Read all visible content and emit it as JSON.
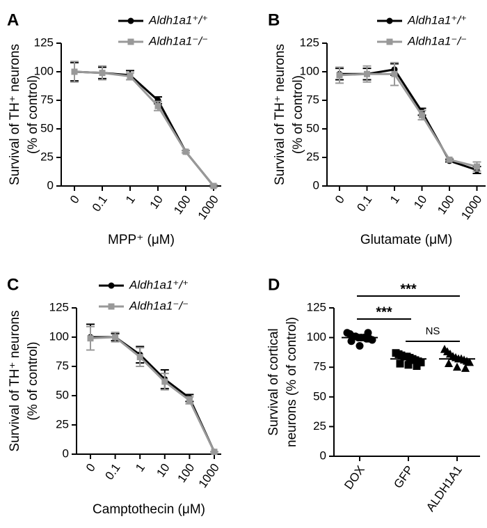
{
  "chart_data": [
    {
      "type": "line",
      "panel": "A",
      "ylabel": [
        "Survival of TH⁺ neurons",
        "(% of control)"
      ],
      "xlabel": "MPP⁺ (μM)",
      "categories": [
        "0",
        "0.1",
        "1",
        "10",
        "100",
        "1000"
      ],
      "ylim": [
        0,
        125
      ],
      "yticks": [
        0,
        25,
        50,
        75,
        100,
        125
      ],
      "legend": "top",
      "series": [
        {
          "name": "Aldh1a1⁺/⁺",
          "color": "#000000",
          "values": [
            100,
            99,
            97,
            75,
            30,
            0
          ],
          "errors": [
            8,
            5,
            4,
            3,
            1,
            0
          ]
        },
        {
          "name": "Aldh1a1⁻/⁻",
          "color": "#999999",
          "values": [
            100,
            99,
            96,
            70,
            30,
            0
          ],
          "errors": [
            9,
            6,
            3,
            4,
            1,
            1
          ]
        }
      ]
    },
    {
      "type": "line",
      "panel": "B",
      "ylabel": [
        "Survival of TH⁺ neurons",
        "(% of control)"
      ],
      "xlabel": "Glutamate (μM)",
      "categories": [
        "0",
        "0.1",
        "1",
        "10",
        "100",
        "1000"
      ],
      "ylim": [
        0,
        125
      ],
      "yticks": [
        0,
        25,
        50,
        75,
        100,
        125
      ],
      "legend": "top",
      "series": [
        {
          "name": "Aldh1a1⁺/⁺",
          "color": "#000000",
          "values": [
            98,
            98,
            102,
            65,
            22,
            14
          ],
          "errors": [
            5,
            5,
            5,
            3,
            1,
            3
          ]
        },
        {
          "name": "Aldh1a1⁻/⁻",
          "color": "#999999",
          "values": [
            97,
            98,
            98,
            62,
            23,
            17
          ],
          "errors": [
            7,
            7,
            10,
            4,
            1,
            4
          ]
        }
      ]
    },
    {
      "type": "line",
      "panel": "C",
      "ylabel": [
        "Survival of TH⁺ neurons",
        "(% of control)"
      ],
      "xlabel": "Camptothecin (μM)",
      "categories": [
        "0",
        "0.1",
        "1",
        "10",
        "100",
        "1000"
      ],
      "ylim": [
        0,
        125
      ],
      "yticks": [
        0,
        25,
        50,
        75,
        100,
        125
      ],
      "legend": "top",
      "series": [
        {
          "name": "Aldh1a1⁺/⁺",
          "color": "#000000",
          "values": [
            100,
            100,
            85,
            64,
            48,
            2
          ],
          "errors": [
            11,
            3,
            7,
            8,
            3,
            0
          ]
        },
        {
          "name": "Aldh1a1⁻/⁻",
          "color": "#999999",
          "values": [
            99,
            100,
            83,
            62,
            46,
            2
          ],
          "errors": [
            10,
            4,
            8,
            7,
            3,
            0
          ]
        }
      ]
    },
    {
      "type": "dot",
      "panel": "D",
      "ylabel": [
        "Survival of cortical",
        "neurons (% of control)"
      ],
      "categories": [
        "DOX",
        "GFP",
        "ALDH1A1"
      ],
      "markers": [
        "circle",
        "square",
        "triangle"
      ],
      "color": "#000000",
      "ylim": [
        0,
        125
      ],
      "yticks": [
        0,
        25,
        50,
        75,
        100,
        125
      ],
      "points": [
        [
          104,
          103,
          101,
          101,
          100,
          100,
          100,
          99,
          99,
          98,
          97,
          93,
          104
        ],
        [
          87,
          86,
          85,
          84,
          84,
          83,
          82,
          81,
          80,
          79,
          78,
          77,
          76
        ],
        [
          90,
          88,
          86,
          84,
          83,
          82,
          82,
          81,
          80,
          79,
          78,
          75,
          74
        ]
      ],
      "means": [
        100,
        82,
        82
      ],
      "annotations": [
        {
          "text": "***",
          "categories": [
            "DOX",
            "ALDH1A1"
          ]
        },
        {
          "text": "***",
          "categories": [
            "DOX",
            "GFP"
          ]
        },
        {
          "text": "NS",
          "categories": [
            "GFP",
            "ALDH1A1"
          ]
        }
      ]
    }
  ]
}
